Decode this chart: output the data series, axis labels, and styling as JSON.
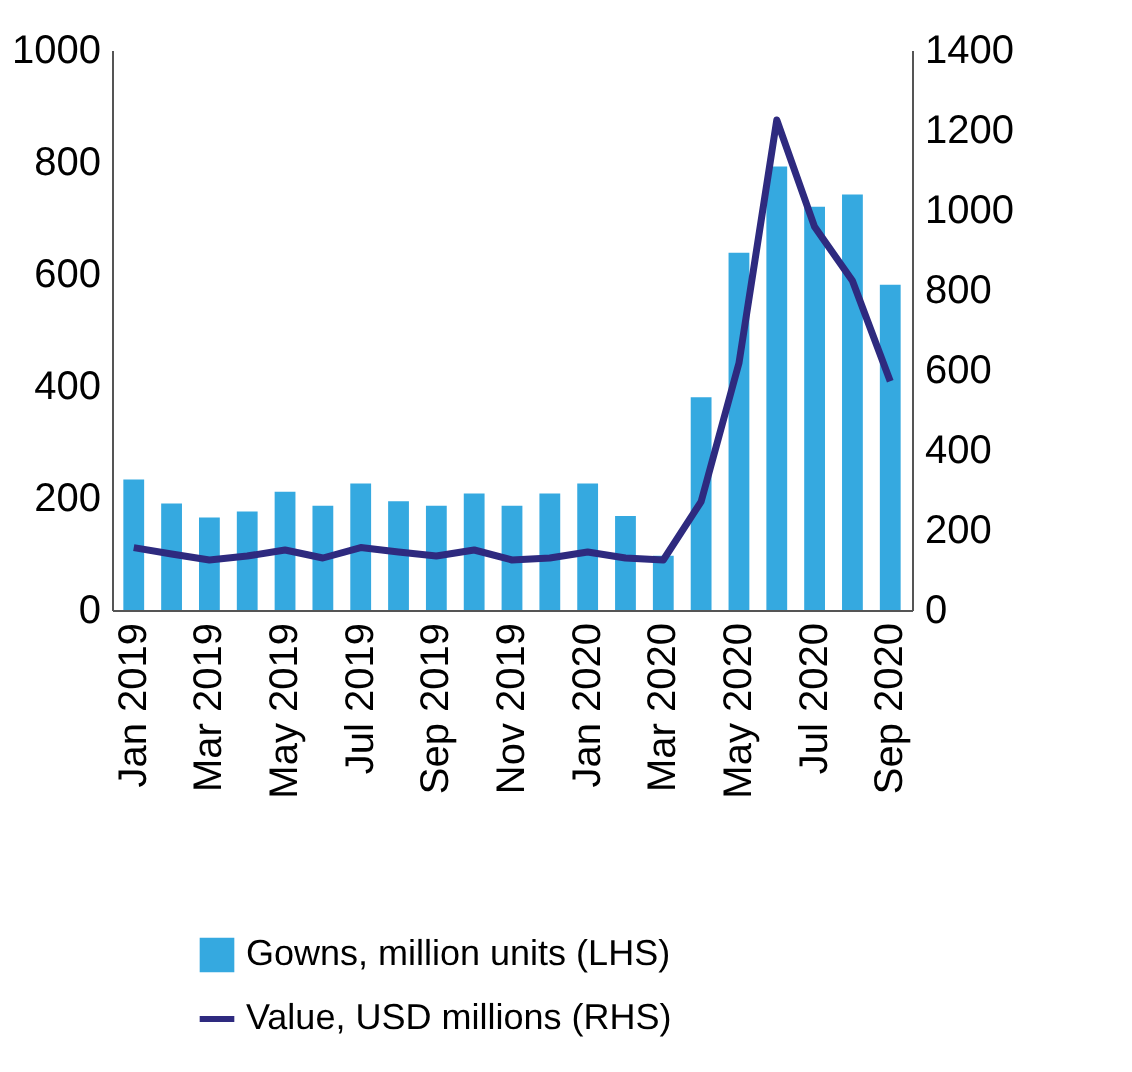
{
  "chart_data": {
    "type": "bar",
    "categories": [
      "Jan 2019",
      null,
      "Mar 2019",
      null,
      "May 2019",
      null,
      "Jul 2019",
      null,
      "Sep 2019",
      null,
      "Nov 2019",
      null,
      "Jan 2020",
      null,
      "Mar 2020",
      null,
      "May 2020",
      null,
      "Jul 2020",
      null,
      "Sep 2020"
    ],
    "series": [
      {
        "name": "Gowns, million units (LHS)",
        "color": "#35a9e0",
        "values": [
          233,
          190,
          165,
          176,
          211,
          186,
          226,
          194,
          186,
          208,
          186,
          208,
          226,
          168,
          97,
          380,
          638,
          792,
          720,
          742,
          581
        ]
      },
      {
        "name": "Value, USD millions (RHS)",
        "type": "line",
        "axis": "y2",
        "color": "#2e2a7f",
        "values": [
          156,
          140,
          125,
          135,
          150,
          130,
          156,
          145,
          135,
          150,
          125,
          130,
          145,
          130,
          125,
          271,
          617,
          1225,
          958,
          823,
          572
        ]
      }
    ],
    "ylim": [
      0,
      1000
    ],
    "yticks": [
      0,
      200,
      400,
      600,
      800,
      1000
    ],
    "y2lim": [
      0,
      1400
    ],
    "y2ticks": [
      0,
      200,
      400,
      600,
      800,
      1000,
      1200,
      1400
    ],
    "grid": false,
    "legend": "bottom",
    "line_style": "solid",
    "marker": "none"
  }
}
